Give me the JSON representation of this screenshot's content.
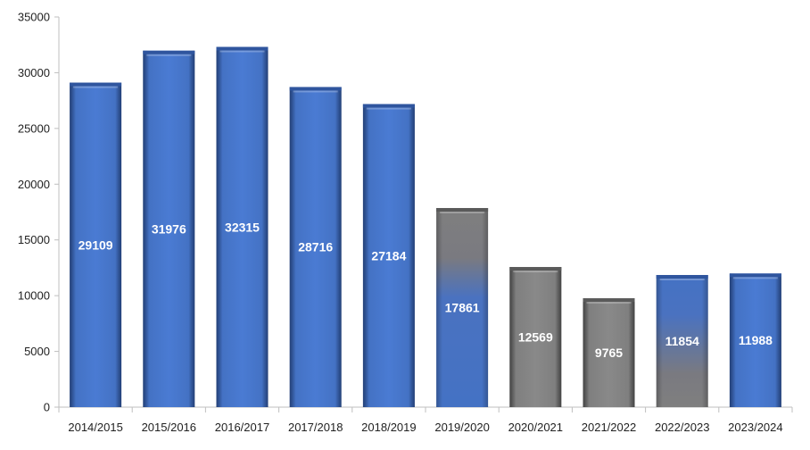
{
  "chart_data": {
    "type": "bar",
    "title": "",
    "xlabel": "",
    "ylabel": "",
    "ylim": [
      0,
      35000
    ],
    "yticks": [
      0,
      5000,
      10000,
      15000,
      20000,
      25000,
      30000,
      35000
    ],
    "grid": false,
    "legend": "none",
    "categories": [
      "2014/2015",
      "2015/2016",
      "2016/2017",
      "2017/2018",
      "2018/2019",
      "2019/2020",
      "2020/2021",
      "2021/2022",
      "2022/2023",
      "2023/2024"
    ],
    "values": [
      29109,
      31976,
      32315,
      28716,
      27184,
      17861,
      12569,
      9765,
      11854,
      11988
    ],
    "bar_styles": [
      "blue",
      "blue",
      "blue",
      "blue",
      "blue",
      "gray-top-blue-bottom",
      "gray",
      "gray",
      "blue-top-gray-bottom",
      "blue"
    ],
    "colors": {
      "blue": "#4472c4",
      "blue_edge": "#2f559e",
      "gray": "#7f7f7f",
      "gray_edge": "#5a5a5a",
      "axis": "#bfbfbf",
      "label": "#ffffff",
      "tick": "#222222"
    }
  }
}
